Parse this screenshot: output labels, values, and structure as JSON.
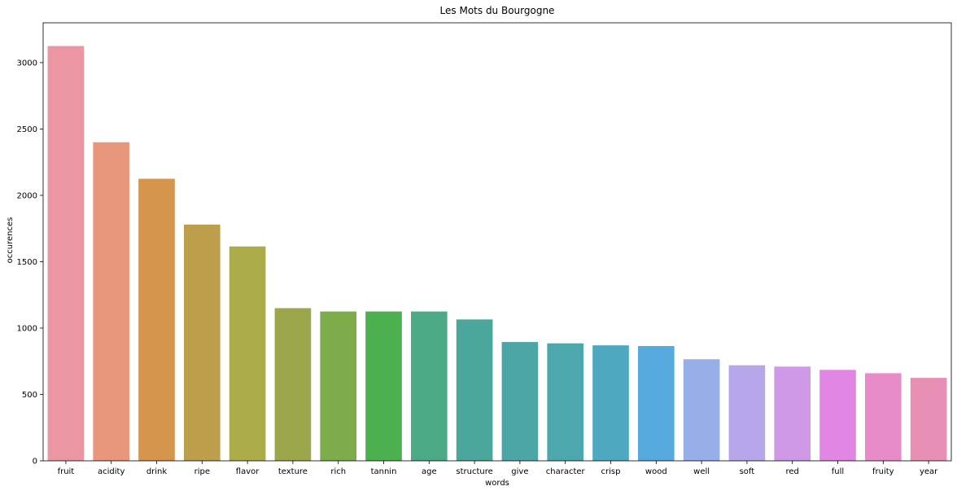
{
  "chart_data": {
    "type": "bar",
    "title": "Les Mots du Bourgogne",
    "xlabel": "words",
    "ylabel": "occurences",
    "categories": [
      "fruit",
      "acidity",
      "drink",
      "ripe",
      "flavor",
      "texture",
      "rich",
      "tannin",
      "age",
      "structure",
      "give",
      "character",
      "crisp",
      "wood",
      "well",
      "soft",
      "red",
      "full",
      "fruity",
      "year"
    ],
    "values": [
      3125,
      2400,
      2125,
      1780,
      1615,
      1150,
      1125,
      1125,
      1125,
      1065,
      895,
      885,
      870,
      865,
      765,
      720,
      710,
      685,
      660,
      625
    ],
    "colors": [
      "#ea96a3",
      "#e8967c",
      "#d6954c",
      "#bd9e4a",
      "#adac4a",
      "#9ba74a",
      "#7fac4a",
      "#4bb04d",
      "#4cab86",
      "#4ba79c",
      "#4ba6a5",
      "#4ca8ad",
      "#4ea8c0",
      "#57aadd",
      "#97aee8",
      "#b8a6ea",
      "#cf99e7",
      "#e286e4",
      "#e88cc9",
      "#e88fb5"
    ],
    "ylim": [
      0,
      3300
    ],
    "yticks": [
      0,
      500,
      1000,
      1500,
      2000,
      2500,
      3000
    ],
    "grid": false,
    "legend": "none"
  }
}
